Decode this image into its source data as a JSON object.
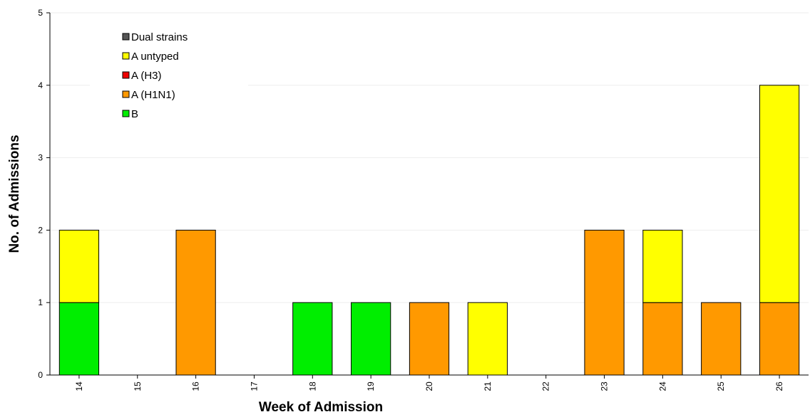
{
  "chart_data": {
    "type": "bar",
    "stacked": true,
    "title": "",
    "xlabel": "Week of Admission",
    "ylabel": "No. of Admissions",
    "ylim": [
      0,
      5
    ],
    "yticks": [
      "0",
      "1",
      "2",
      "3",
      "4",
      "5"
    ],
    "categories": [
      "14",
      "15",
      "16",
      "17",
      "18",
      "19",
      "20",
      "21",
      "22",
      "23",
      "24",
      "25",
      "26"
    ],
    "grid": true,
    "legend_position": "top-left",
    "series": [
      {
        "name": "B",
        "color": "#00ee00",
        "values": [
          1,
          0,
          0,
          0,
          1,
          1,
          0,
          0,
          0,
          0,
          0,
          0,
          0
        ]
      },
      {
        "name": "A (H1N1)",
        "color": "#ff9900",
        "values": [
          0,
          0,
          2,
          0,
          0,
          0,
          1,
          0,
          0,
          2,
          1,
          1,
          1
        ]
      },
      {
        "name": "A (H3)",
        "color": "#ee0000",
        "values": [
          0,
          0,
          0,
          0,
          0,
          0,
          0,
          0,
          0,
          0,
          0,
          0,
          0
        ]
      },
      {
        "name": "A untyped",
        "color": "#ffff00",
        "values": [
          1,
          0,
          0,
          0,
          0,
          0,
          0,
          1,
          0,
          0,
          1,
          0,
          3
        ]
      },
      {
        "name": "Dual strains",
        "color": "#555555",
        "values": [
          0,
          0,
          0,
          0,
          0,
          0,
          0,
          0,
          0,
          0,
          0,
          0,
          0
        ]
      }
    ],
    "legend_order": [
      "Dual strains",
      "A untyped",
      "A (H3)",
      "A (H1N1)",
      "B"
    ]
  }
}
